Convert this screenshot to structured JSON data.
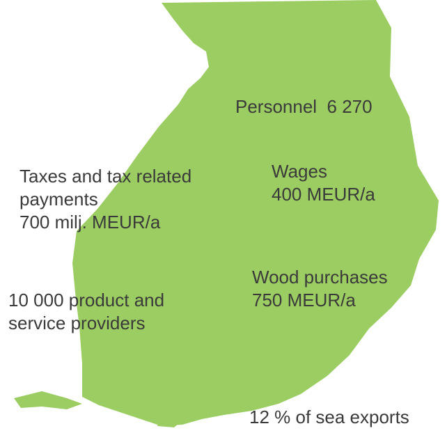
{
  "labels": [
    {
      "lines": [
        "Personnel  6 270"
      ]
    },
    {
      "lines": [
        "Taxes and tax related",
        "payments",
        "700 milj. MEUR/a"
      ]
    },
    {
      "lines": [
        "Wages",
        "400 MEUR/a"
      ]
    },
    {
      "lines": [
        "Wood purchases",
        "750 MEUR/a"
      ]
    },
    {
      "lines": [
        "10 000 product and",
        "service providers"
      ]
    },
    {
      "lines": [
        "12 % of sea exports"
      ]
    }
  ]
}
